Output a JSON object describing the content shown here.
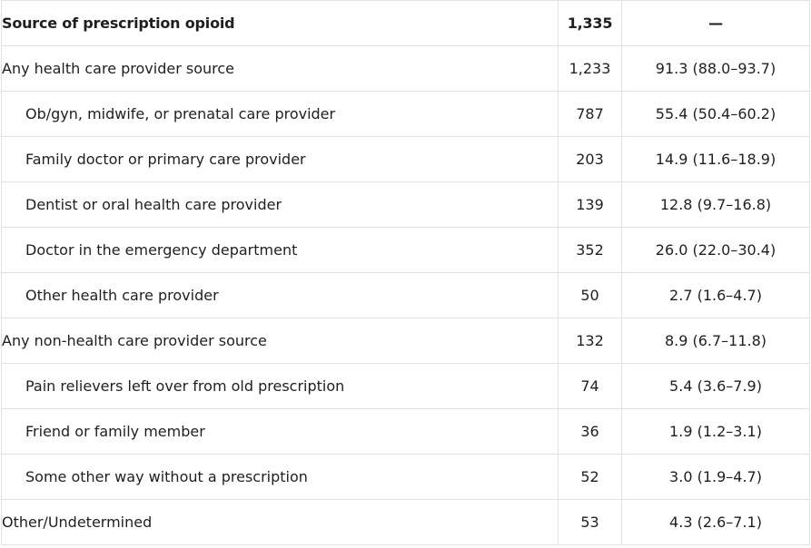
{
  "table": {
    "rows": [
      {
        "label": "Source of prescription opioid",
        "n": "1,335",
        "pct": "—"
      },
      {
        "label": "Any health care provider source",
        "n": "1,233",
        "pct": "91.3 (88.0–93.7)"
      },
      {
        "label": "Ob/gyn, midwife, or prenatal care provider",
        "n": "787",
        "pct": "55.4 (50.4–60.2)"
      },
      {
        "label": "Family doctor or primary care provider",
        "n": "203",
        "pct": "14.9 (11.6–18.9)"
      },
      {
        "label": "Dentist or oral health care provider",
        "n": "139",
        "pct": "12.8 (9.7–16.8)"
      },
      {
        "label": "Doctor in the emergency department",
        "n": "352",
        "pct": "26.0 (22.0–30.4)"
      },
      {
        "label": "Other health care provider",
        "n": "50",
        "pct": "2.7 (1.6–4.7)"
      },
      {
        "label": "Any non-health care provider source",
        "n": "132",
        "pct": "8.9 (6.7–11.8)"
      },
      {
        "label": "Pain relievers left over from old prescription",
        "n": "74",
        "pct": "5.4 (3.6–7.9)"
      },
      {
        "label": "Friend or family member",
        "n": "36",
        "pct": "1.9 (1.2–3.1)"
      },
      {
        "label": "Some other way without a prescription",
        "n": "52",
        "pct": "3.0 (1.9–4.7)"
      },
      {
        "label": "Other/Undetermined",
        "n": "53",
        "pct": "4.3 (2.6–7.1)"
      }
    ]
  }
}
